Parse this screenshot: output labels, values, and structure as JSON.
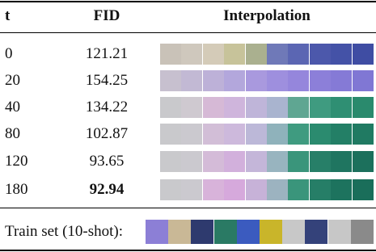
{
  "table": {
    "header": [
      "t",
      "FID",
      "Interpolation"
    ],
    "rows": [
      [
        "0",
        "121.21"
      ],
      [
        "20",
        "154.25"
      ],
      [
        "40",
        "134.22"
      ],
      [
        "80",
        "102.87"
      ],
      [
        "120",
        "93.65"
      ],
      [
        "180",
        "92.94"
      ]
    ],
    "footer": "Train set (10-shot):"
  }
}
